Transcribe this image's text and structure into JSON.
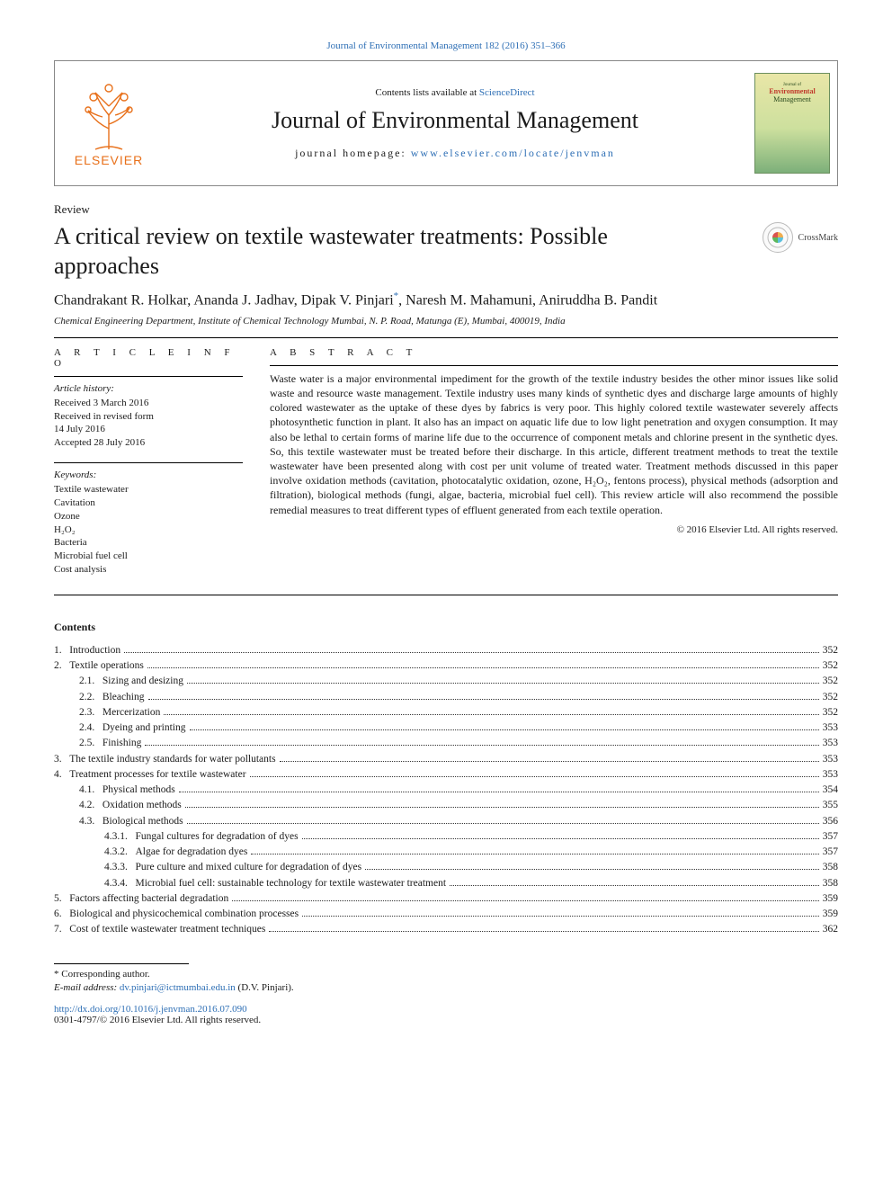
{
  "top_citation": "Journal of Environmental Management 182 (2016) 351–366",
  "header": {
    "contents_prefix": "Contents lists available at ",
    "contents_link": "ScienceDirect",
    "journal_name": "Journal of Environmental Management",
    "homepage_label": "journal homepage: ",
    "homepage_url": "www.elsevier.com/locate/jenvman",
    "publisher_label": "ELSEVIER",
    "cover": {
      "line1": "Journal of",
      "line2": "Environmental",
      "line3": "Management"
    }
  },
  "article": {
    "type": "Review",
    "title": "A critical review on textile wastewater treatments: Possible approaches",
    "crossmark_label": "CrossMark",
    "authors_html": "Chandrakant R. Holkar, Ananda J. Jadhav, Dipak V. Pinjari",
    "corr_mark": "*",
    "authors_tail": ", Naresh M. Mahamuni, Aniruddha B. Pandit",
    "affiliation": "Chemical Engineering Department, Institute of Chemical Technology Mumbai, N. P. Road, Matunga (E), Mumbai, 400019, India"
  },
  "info": {
    "heading": "A R T I C L E   I N F O",
    "history_label": "Article history:",
    "history": [
      "Received 3 March 2016",
      "Received in revised form",
      "14 July 2016",
      "Accepted 28 July 2016"
    ],
    "keywords_label": "Keywords:",
    "keywords": [
      "Textile wastewater",
      "Cavitation",
      "Ozone",
      "H₂O₂",
      "Bacteria",
      "Microbial fuel cell",
      "Cost analysis"
    ]
  },
  "abstract": {
    "heading": "A B S T R A C T",
    "text": "Waste water is a major environmental impediment for the growth of the textile industry besides the other minor issues like solid waste and resource waste management. Textile industry uses many kinds of synthetic dyes and discharge large amounts of highly colored wastewater as the uptake of these dyes by fabrics is very poor. This highly colored textile wastewater severely affects photosynthetic function in plant. It also has an impact on aquatic life due to low light penetration and oxygen consumption. It may also be lethal to certain forms of marine life due to the occurrence of component metals and chlorine present in the synthetic dyes. So, this textile wastewater must be treated before their discharge. In this article, different treatment methods to treat the textile wastewater have been presented along with cost per unit volume of treated water. Treatment methods discussed in this paper involve oxidation methods (cavitation, photocatalytic oxidation, ozone, H₂O₂, fentons process), physical methods (adsorption and filtration), biological methods (fungi, algae, bacteria, microbial fuel cell). This review article will also recommend the possible remedial measures to treat different types of effluent generated from each textile operation.",
    "copyright": "© 2016 Elsevier Ltd. All rights reserved."
  },
  "contents_label": "Contents",
  "toc": [
    {
      "n": "1.",
      "t": "Introduction",
      "p": "352",
      "lvl": 0
    },
    {
      "n": "2.",
      "t": "Textile operations",
      "p": "352",
      "lvl": 0
    },
    {
      "n": "2.1.",
      "t": "Sizing and desizing",
      "p": "352",
      "lvl": 1
    },
    {
      "n": "2.2.",
      "t": "Bleaching",
      "p": "352",
      "lvl": 1
    },
    {
      "n": "2.3.",
      "t": "Mercerization",
      "p": "352",
      "lvl": 1
    },
    {
      "n": "2.4.",
      "t": "Dyeing and printing",
      "p": "353",
      "lvl": 1
    },
    {
      "n": "2.5.",
      "t": "Finishing",
      "p": "353",
      "lvl": 1
    },
    {
      "n": "3.",
      "t": "The textile industry standards for water pollutants",
      "p": "353",
      "lvl": 0
    },
    {
      "n": "4.",
      "t": "Treatment processes for textile wastewater",
      "p": "353",
      "lvl": 0
    },
    {
      "n": "4.1.",
      "t": "Physical methods",
      "p": "354",
      "lvl": 1
    },
    {
      "n": "4.2.",
      "t": "Oxidation methods",
      "p": "355",
      "lvl": 1
    },
    {
      "n": "4.3.",
      "t": "Biological methods",
      "p": "356",
      "lvl": 1
    },
    {
      "n": "4.3.1.",
      "t": "Fungal cultures for degradation of dyes",
      "p": "357",
      "lvl": 2
    },
    {
      "n": "4.3.2.",
      "t": "Algae for degradation dyes",
      "p": "357",
      "lvl": 2
    },
    {
      "n": "4.3.3.",
      "t": "Pure culture and mixed culture for degradation of dyes",
      "p": "358",
      "lvl": 2
    },
    {
      "n": "4.3.4.",
      "t": "Microbial fuel cell: sustainable technology for textile wastewater treatment",
      "p": "358",
      "lvl": 2
    },
    {
      "n": "5.",
      "t": "Factors affecting bacterial degradation",
      "p": "359",
      "lvl": 0
    },
    {
      "n": "6.",
      "t": "Biological and physicochemical combination processes",
      "p": "359",
      "lvl": 0
    },
    {
      "n": "7.",
      "t": "Cost of textile wastewater treatment techniques",
      "p": "362",
      "lvl": 0
    }
  ],
  "footnote": {
    "corr": "* Corresponding author.",
    "email_label": "E-mail address: ",
    "email": "dv.pinjari@ictmumbai.edu.in",
    "email_tail": " (D.V. Pinjari)."
  },
  "doi": {
    "url": "http://dx.doi.org/10.1016/j.jenvman.2016.07.090",
    "copy": "0301-4797/© 2016 Elsevier Ltd. All rights reserved."
  },
  "colors": {
    "link": "#2e6fb5",
    "elsevier_orange": "#e8701a"
  }
}
